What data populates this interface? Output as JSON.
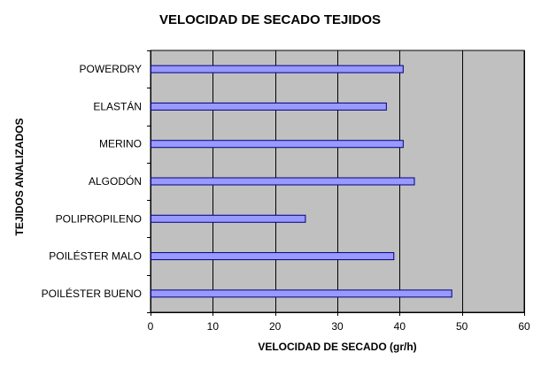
{
  "colors": {
    "plot_background": "#c0c0c0",
    "bar_fill": "#9999ff",
    "bar_stroke": "#000080",
    "gridline": "#000000",
    "axis": "#000000",
    "page_background": "#ffffff"
  },
  "chart_data": {
    "type": "bar",
    "orientation": "horizontal",
    "title": "VELOCIDAD DE SECADO TEJIDOS",
    "xlabel": "VELOCIDAD DE SECADO (gr/h)",
    "ylabel": "TEJIDOS ANALIZADOS",
    "categories": [
      "POWERDRY",
      "ELASTÁN",
      "MERINO",
      "ALGODÓN",
      "POLIPROPILENO",
      "POILÉSTER MALO",
      "POILÉSTER BUENO"
    ],
    "values": [
      40.5,
      37.8,
      40.5,
      42.3,
      24.8,
      39.0,
      48.3
    ],
    "xlim": [
      0,
      60
    ],
    "xticks": [
      "0",
      "10",
      "20",
      "30",
      "40",
      "50",
      "60"
    ],
    "xtick_values": [
      0,
      10,
      20,
      30,
      40,
      50,
      60
    ],
    "grid": "vertical major gridlines",
    "legend": "none"
  }
}
